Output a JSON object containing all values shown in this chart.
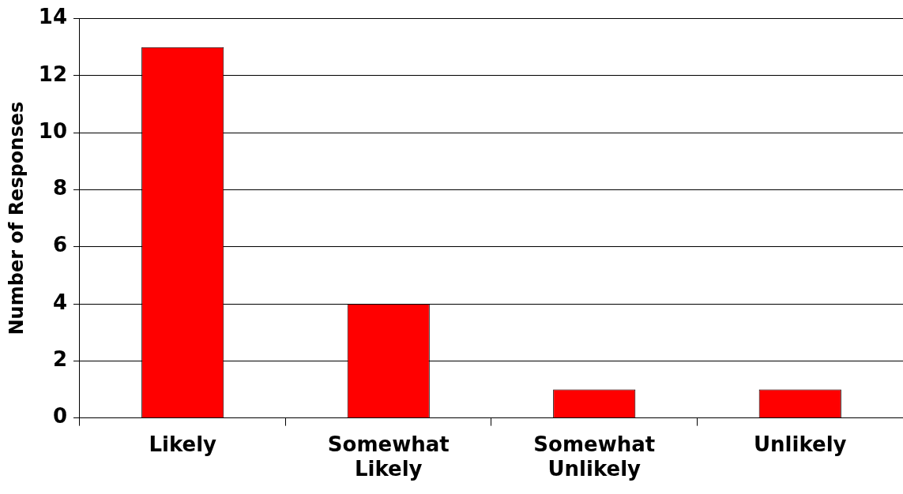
{
  "chart_data": {
    "type": "bar",
    "ylabel": "Number of Responses",
    "categories": [
      "Likely",
      "Somewhat Likely",
      "Somewhat Unlikely",
      "Unlikely"
    ],
    "values": [
      13,
      4,
      1,
      1
    ],
    "color": "#ff0000",
    "ylim": [
      0,
      14
    ],
    "yticks": [
      0,
      2,
      4,
      6,
      8,
      10,
      12,
      14
    ],
    "grid": "y",
    "legend": false
  }
}
